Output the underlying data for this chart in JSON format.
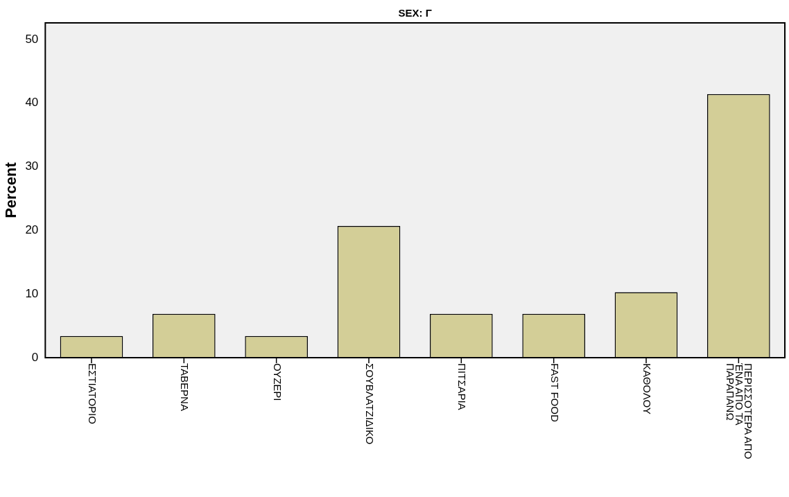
{
  "chart_data": {
    "type": "bar",
    "title": "SEX: Γ",
    "ylabel": "Percent",
    "categories": [
      "ΕΣΤΙΑΤΟΡΙΟ",
      "ΤΑΒΕΡΝΑ",
      "ΟΥΖΕΡΙ",
      "ΣΟΥΒΛΑΤΖΙΔΙΚΟ",
      "ΠΙΤΣΑΡΙΑ",
      "FAST FOOD",
      "ΚΑΘΟΛΟΥ",
      "ΠΕΡΙΣΣΟΤΕΡΑ ΑΠΟ\nΈΝΑ ΑΠΟ ΤΑ\nΠΑΡΑΠΑΝΩ"
    ],
    "values": [
      3.4,
      6.9,
      3.4,
      20.7,
      6.9,
      6.9,
      10.3,
      41.4
    ],
    "color": "#d3ce97",
    "ylim": [
      0,
      52.6
    ],
    "yticks": [
      0,
      10,
      20,
      30,
      40,
      50
    ],
    "grid": false,
    "legend": false
  }
}
